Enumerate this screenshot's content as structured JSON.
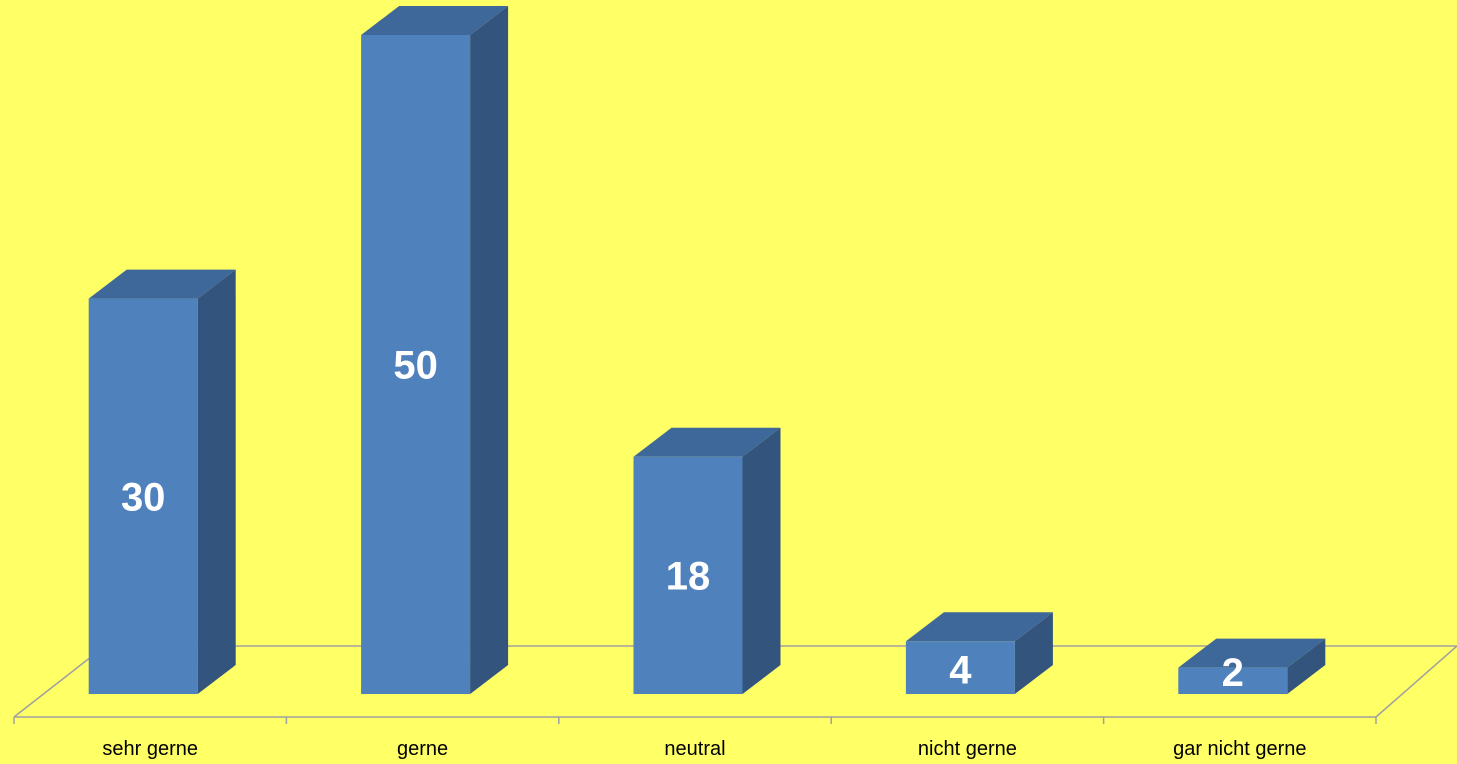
{
  "page": {
    "background": "#FFFF66"
  },
  "chart_data": {
    "type": "bar",
    "categories": [
      "sehr gerne",
      "gerne",
      "neutral",
      "nicht gerne",
      "gar nicht gerne"
    ],
    "values": [
      30,
      50,
      18,
      4,
      2
    ],
    "data_labels": [
      "30",
      "50",
      "18",
      "4",
      "2"
    ],
    "title": "",
    "xlabel": "",
    "ylabel": "",
    "ylim": [
      0,
      50
    ],
    "grid": false,
    "legend": "none",
    "style": "3d-column",
    "colors": {
      "bar_front": "#4F81BD",
      "bar_side": "#33547D",
      "bar_top": "#3F689A",
      "floor_line": "#A0A0A0",
      "label_text": "#FFFFFF",
      "axis_text": "#000000"
    }
  }
}
